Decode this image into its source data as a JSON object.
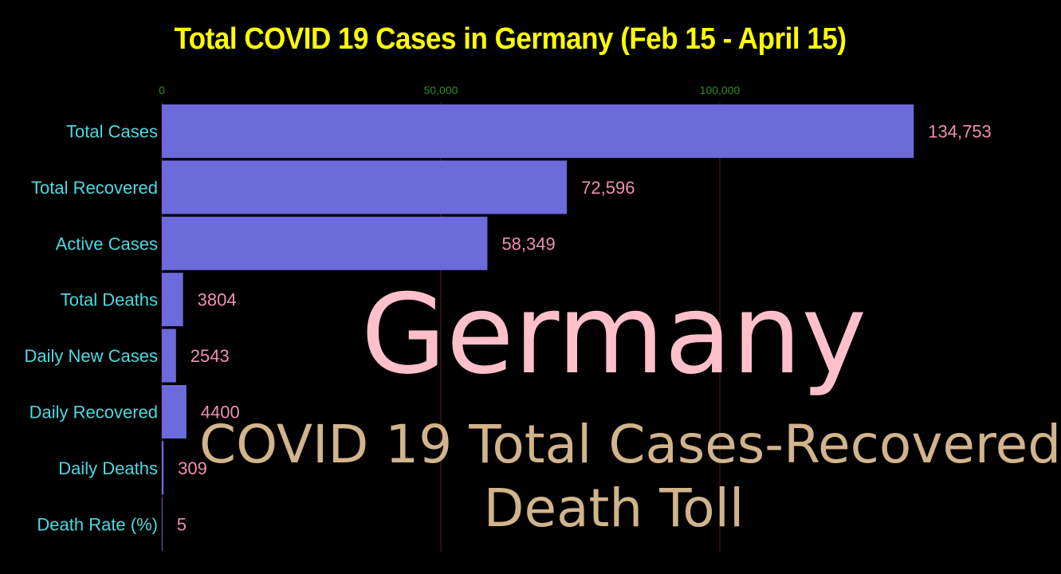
{
  "colors": {
    "background": "#000000",
    "title": "#ffff00",
    "bar": "#6b6bdc",
    "category_label": "#4fd8e0",
    "value_label": "#f08fb0",
    "tick_label": "#2e8b2e",
    "gridline": "#3a1414",
    "overlay_country": "#ffc0cb",
    "overlay_subtitle": "#d2b48c"
  },
  "chart_data": {
    "type": "bar",
    "orientation": "horizontal",
    "title": "Total COVID 19 Cases in Germany (Feb 15 - April 15)",
    "xlabel": "",
    "ylabel": "",
    "xlim": [
      0,
      140000
    ],
    "x_ticks": [
      0,
      50000,
      100000
    ],
    "x_tick_labels": [
      "0",
      "50,000",
      "100,000"
    ],
    "tick_position": "top",
    "grid": true,
    "categories": [
      "Total Cases",
      "Total Recovered",
      "Active Cases",
      "Total Deaths",
      "Daily New Cases",
      "Daily Recovered",
      "Daily Deaths",
      "Death Rate (%)"
    ],
    "values": [
      134753,
      72596,
      58349,
      3804,
      2543,
      4400,
      309,
      5
    ],
    "value_labels": [
      "134,753",
      "72,596",
      "58,349",
      "3804",
      "2543",
      "4400",
      "309",
      "5"
    ]
  },
  "overlay": {
    "country": "Germany",
    "subtitle_line1": "COVID 19 Total Cases-Recovered",
    "subtitle_line2": "Death Toll"
  }
}
